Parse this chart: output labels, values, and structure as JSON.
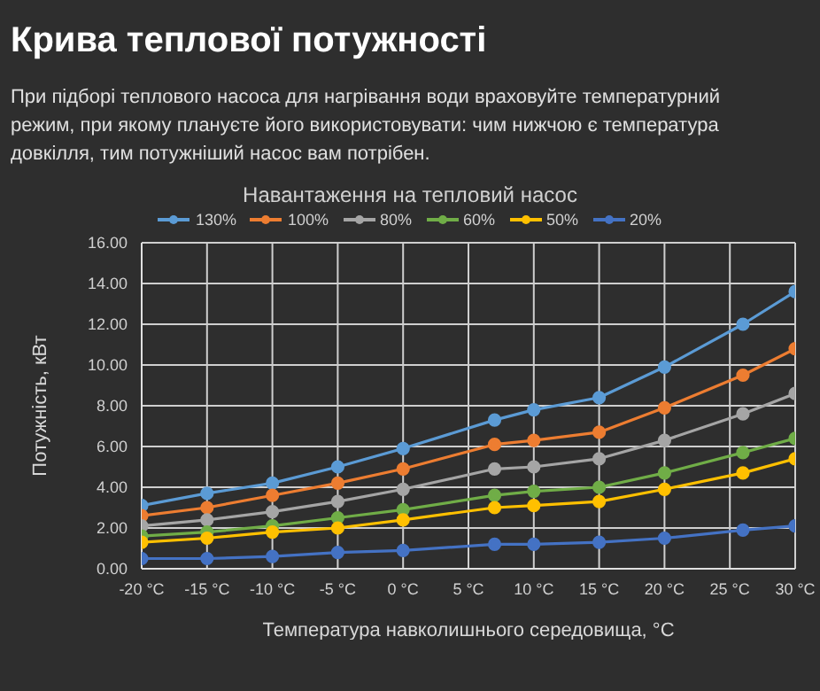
{
  "chart_data": {
    "type": "line",
    "title": "Крива теплової потужності",
    "subtitle": "При підборі теплового насоса для нагрівання води враховуйте температурний режим, при якому плануєте його використовувати: чим нижчою є температура довкілля, тим потужніший насос вам потрібен.",
    "legend_title": "Навантаження на тепловий насос",
    "xlabel": "Температура навколишнього середовища, °C",
    "ylabel": "Потужність, кВт",
    "x": [
      -20,
      -15,
      -10,
      -5,
      0,
      7,
      10,
      15,
      20,
      26,
      30
    ],
    "series": [
      {
        "name": "130%",
        "color": "#5b9bd5",
        "values": [
          3.1,
          3.7,
          4.2,
          5.0,
          5.9,
          7.3,
          7.8,
          8.4,
          9.9,
          12.0,
          13.6
        ]
      },
      {
        "name": "100%",
        "color": "#ed7d31",
        "values": [
          2.6,
          3.0,
          3.6,
          4.2,
          4.9,
          6.1,
          6.3,
          6.7,
          7.9,
          9.5,
          10.8
        ]
      },
      {
        "name": "80%",
        "color": "#a5a5a5",
        "values": [
          2.1,
          2.4,
          2.8,
          3.3,
          3.9,
          4.9,
          5.0,
          5.4,
          6.3,
          7.6,
          8.6
        ]
      },
      {
        "name": "60%",
        "color": "#70ad47",
        "values": [
          1.6,
          1.8,
          2.1,
          2.5,
          2.9,
          3.6,
          3.8,
          4.0,
          4.7,
          5.7,
          6.4
        ]
      },
      {
        "name": "50%",
        "color": "#ffc000",
        "values": [
          1.3,
          1.5,
          1.8,
          2.0,
          2.4,
          3.0,
          3.1,
          3.3,
          3.9,
          4.7,
          5.4
        ]
      },
      {
        "name": "20%",
        "color": "#4472c4",
        "values": [
          0.5,
          0.5,
          0.6,
          0.8,
          0.9,
          1.2,
          1.2,
          1.3,
          1.5,
          1.9,
          2.1
        ]
      }
    ],
    "xlim": [
      -20,
      30
    ],
    "xticks": [
      {
        "value": -20,
        "label": "-20 °C"
      },
      {
        "value": -15,
        "label": "-15 °C"
      },
      {
        "value": -10,
        "label": "-10 °C"
      },
      {
        "value": -5,
        "label": "-5 °C"
      },
      {
        "value": 0,
        "label": "0 °C"
      },
      {
        "value": 5,
        "label": "5 °C"
      },
      {
        "value": 10,
        "label": "10 °C"
      },
      {
        "value": 15,
        "label": "15 °C"
      },
      {
        "value": 20,
        "label": "20 °C"
      },
      {
        "value": 25,
        "label": "25 °C"
      },
      {
        "value": 30,
        "label": "30 °C"
      }
    ],
    "ylim": [
      0,
      16
    ],
    "yticks": [
      {
        "value": 0,
        "label": "0.00"
      },
      {
        "value": 2,
        "label": "2.00"
      },
      {
        "value": 4,
        "label": "4.00"
      },
      {
        "value": 6,
        "label": "6.00"
      },
      {
        "value": 8,
        "label": "8.00"
      },
      {
        "value": 10,
        "label": "10.00"
      },
      {
        "value": 12,
        "label": "12.00"
      },
      {
        "value": 14,
        "label": "14.00"
      },
      {
        "value": 16,
        "label": "16.00"
      }
    ],
    "grid": true,
    "legend": "top",
    "marker": "circle",
    "line_style": "solid"
  }
}
